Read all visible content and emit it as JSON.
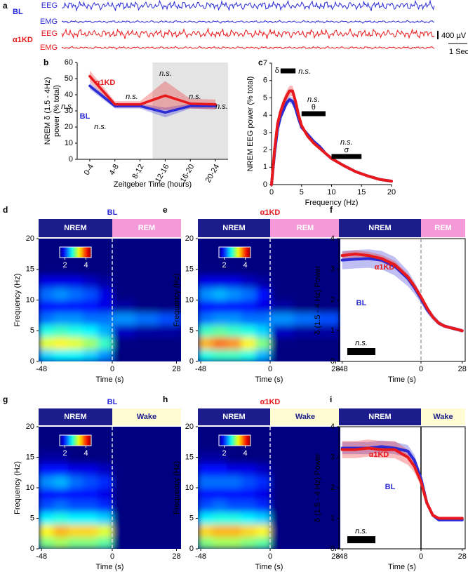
{
  "chart_data": [
    {
      "type": "traces",
      "panel": "a",
      "groups": [
        {
          "name": "BL",
          "color": "#2b2bd6",
          "channels": [
            "EEG",
            "EMG"
          ]
        },
        {
          "name": "α1KD",
          "color": "#e8191c",
          "channels": [
            "EEG",
            "EMG"
          ]
        }
      ],
      "scale_bar": {
        "amplitude": "400 µV",
        "time": "1 Sec"
      }
    },
    {
      "type": "line",
      "panel": "b",
      "categories": [
        "0-4",
        "4-8",
        "8-12",
        "12-16",
        "16-20",
        "20-24"
      ],
      "shaded": [
        false,
        false,
        false,
        true,
        true,
        true
      ],
      "series": [
        {
          "name": "BL",
          "color": "#2b2bd6",
          "values": [
            45.5,
            33,
            33,
            29,
            33,
            33
          ],
          "errors": [
            2,
            1.5,
            1.5,
            3,
            1.5,
            2
          ]
        },
        {
          "name": "α1KD",
          "color": "#e8191c",
          "values": [
            51.5,
            34,
            34,
            39.5,
            34.5,
            34
          ],
          "errors": [
            3.5,
            2,
            2,
            9,
            3,
            3
          ]
        }
      ],
      "ylim": [
        0,
        60
      ],
      "yticks": [
        0,
        10,
        20,
        30,
        40,
        50,
        60
      ],
      "ylabel": [
        "NREM δ (1.5 - 4Hz)",
        "power (% total)"
      ],
      "xlabel": "Zeitgeber Time (hours)",
      "annotations": [
        "n.s.",
        "n.s.",
        "n.s.",
        "n.s.",
        "n.s.",
        "n.s."
      ]
    },
    {
      "type": "line",
      "panel": "c",
      "x": [
        0,
        0.5,
        1,
        1.5,
        2,
        2.5,
        3,
        3.5,
        4,
        4.5,
        5,
        6,
        7,
        8,
        9,
        10,
        12,
        14,
        16,
        18,
        20
      ],
      "series": [
        {
          "name": "BL",
          "color": "#2b2bd6",
          "values": [
            0,
            1.8,
            3.2,
            3.9,
            4.3,
            4.7,
            4.9,
            4.8,
            4.4,
            3.8,
            3.3,
            2.9,
            2.5,
            2.2,
            1.8,
            1.5,
            1.1,
            0.75,
            0.5,
            0.3,
            0.2
          ],
          "errors": [
            0,
            0.15,
            0.2,
            0.2,
            0.2,
            0.2,
            0.2,
            0.2,
            0.2,
            0.15,
            0.1,
            0.1,
            0.1,
            0.08,
            0.08,
            0.06,
            0.05,
            0.05,
            0.04,
            0.03,
            0.03
          ]
        },
        {
          "name": "α1KD",
          "color": "#e8191c",
          "values": [
            0,
            2.0,
            3.5,
            4.2,
            4.7,
            5.1,
            5.4,
            5.4,
            4.8,
            4.0,
            3.4,
            2.8,
            2.4,
            2.1,
            1.8,
            1.5,
            1.1,
            0.75,
            0.5,
            0.3,
            0.2
          ],
          "errors": [
            0,
            0.2,
            0.3,
            0.3,
            0.3,
            0.3,
            0.3,
            0.3,
            0.3,
            0.2,
            0.15,
            0.1,
            0.1,
            0.08,
            0.08,
            0.06,
            0.05,
            0.05,
            0.04,
            0.03,
            0.03
          ]
        }
      ],
      "xlim": [
        0,
        20
      ],
      "xticks": [
        0,
        5,
        10,
        15,
        20
      ],
      "ylim": [
        0,
        7
      ],
      "yticks": [
        0,
        1,
        2,
        3,
        4,
        5,
        6,
        7
      ],
      "ylabel": "NREM EEG power (% total)",
      "xlabel": "Frequency (Hz)",
      "bands": [
        {
          "label": "δ",
          "range": [
            1.5,
            4
          ],
          "note": "n.s."
        },
        {
          "label": "θ",
          "range": [
            5,
            9
          ],
          "note": "n.s."
        },
        {
          "label": "σ",
          "range": [
            10,
            15
          ],
          "note": "n.s."
        }
      ]
    },
    {
      "type": "heatmap",
      "panel": "d",
      "title": "BL",
      "title_color": "#2b2bd6",
      "states": [
        {
          "name": "NREM",
          "color": "#1c1c8c",
          "text_color": "#ffffff"
        },
        {
          "name": "REM",
          "color": "#f59ad8",
          "text_color": "#ffffff"
        }
      ],
      "transition": 0,
      "time_edges": [
        -50,
        -40,
        -30,
        -20,
        -10,
        0,
        10,
        20,
        30
      ],
      "freq_edges": [
        0,
        2,
        4,
        6,
        8,
        10,
        12,
        14,
        16,
        18,
        20
      ],
      "z": [
        [
          2.5,
          2.6,
          2.6,
          2.5,
          2.3,
          1.4,
          1.4,
          1.4
        ],
        [
          3.3,
          3.4,
          3.3,
          3.1,
          2.8,
          1.5,
          1.5,
          1.5
        ],
        [
          2.7,
          2.8,
          2.7,
          2.6,
          2.4,
          1.7,
          1.6,
          1.6
        ],
        [
          2.2,
          2.3,
          2.3,
          2.2,
          2.2,
          2.3,
          2.2,
          2.1
        ],
        [
          1.9,
          1.9,
          1.9,
          1.9,
          1.8,
          1.6,
          1.5,
          1.5
        ],
        [
          2.2,
          2.3,
          2.2,
          2.1,
          1.8,
          1.4,
          1.4,
          1.4
        ],
        [
          1.8,
          1.8,
          1.8,
          1.7,
          1.6,
          1.3,
          1.3,
          1.3
        ],
        [
          1.5,
          1.5,
          1.5,
          1.5,
          1.4,
          1.2,
          1.2,
          1.2
        ],
        [
          1.3,
          1.3,
          1.3,
          1.3,
          1.3,
          1.2,
          1.2,
          1.2
        ],
        [
          1.2,
          1.2,
          1.2,
          1.2,
          1.2,
          1.2,
          1.2,
          1.2
        ]
      ],
      "zlim": [
        1.5,
        4.5
      ],
      "zticks": [
        2,
        4
      ],
      "xlim": [
        -50,
        30
      ],
      "xticks": [
        -48,
        0,
        28
      ],
      "ylim": [
        0,
        20
      ],
      "yticks": [
        0,
        5,
        10,
        15,
        20
      ],
      "xlabel": "Time (s)",
      "ylabel": "Frequency (Hz)"
    },
    {
      "type": "heatmap",
      "panel": "e",
      "title": "α1KD",
      "title_color": "#e8191c",
      "states": [
        {
          "name": "NREM",
          "color": "#1c1c8c",
          "text_color": "#ffffff"
        },
        {
          "name": "REM",
          "color": "#f59ad8",
          "text_color": "#ffffff"
        }
      ],
      "transition": 0,
      "time_edges": [
        -50,
        -40,
        -30,
        -20,
        -10,
        0,
        10,
        20,
        30
      ],
      "freq_edges": [
        0,
        2,
        4,
        6,
        8,
        10,
        12,
        14,
        16,
        18,
        20
      ],
      "z": [
        [
          2.7,
          2.8,
          2.8,
          2.7,
          2.4,
          1.4,
          1.4,
          1.4
        ],
        [
          3.6,
          3.8,
          3.7,
          3.4,
          3.0,
          1.5,
          1.5,
          1.5
        ],
        [
          2.8,
          2.9,
          2.8,
          2.7,
          2.5,
          1.7,
          1.6,
          1.6
        ],
        [
          2.2,
          2.3,
          2.3,
          2.2,
          2.2,
          2.3,
          2.2,
          2.1
        ],
        [
          1.9,
          1.9,
          1.9,
          1.9,
          1.8,
          1.6,
          1.5,
          1.5
        ],
        [
          2.3,
          2.4,
          2.3,
          2.2,
          1.9,
          1.4,
          1.4,
          1.4
        ],
        [
          1.8,
          1.8,
          1.8,
          1.7,
          1.6,
          1.3,
          1.3,
          1.3
        ],
        [
          1.5,
          1.5,
          1.5,
          1.5,
          1.4,
          1.2,
          1.2,
          1.2
        ],
        [
          1.3,
          1.3,
          1.3,
          1.3,
          1.3,
          1.2,
          1.2,
          1.2
        ],
        [
          1.2,
          1.2,
          1.2,
          1.2,
          1.2,
          1.2,
          1.2,
          1.2
        ]
      ],
      "zlim": [
        1.5,
        4.5
      ],
      "zticks": [
        2,
        4
      ],
      "xlim": [
        -50,
        30
      ],
      "xticks": [
        -48,
        0,
        28
      ],
      "ylim": [
        0,
        20
      ],
      "yticks": [
        0,
        5,
        10,
        15,
        20
      ],
      "xlabel": "Time (s)",
      "ylabel": "Frequency (Hz)"
    },
    {
      "type": "line",
      "panel": "f",
      "states": [
        {
          "name": "NREM",
          "color": "#1c1c8c",
          "text_color": "#ffffff"
        },
        {
          "name": "REM",
          "color": "#f59ad8",
          "text_color": "#ffffff"
        }
      ],
      "transition": 0,
      "transition_style": "dashed",
      "x": [
        -48,
        -40,
        -32,
        -24,
        -16,
        -8,
        -4,
        0,
        4,
        8,
        12,
        16,
        20,
        24,
        28
      ],
      "series": [
        {
          "name": "BL",
          "color": "#2b2bd6",
          "values": [
            3.3,
            3.33,
            3.35,
            3.3,
            3.1,
            2.7,
            2.4,
            2.05,
            1.7,
            1.45,
            1.25,
            1.15,
            1.1,
            1.05,
            1.0
          ],
          "errors": [
            0.3,
            0.3,
            0.3,
            0.3,
            0.3,
            0.25,
            0.2,
            0.15,
            0.12,
            0.1,
            0.08,
            0.06,
            0.06,
            0.06,
            0.06
          ]
        },
        {
          "name": "α1KD",
          "color": "#e8191c",
          "values": [
            3.45,
            3.5,
            3.45,
            3.35,
            3.15,
            2.75,
            2.45,
            2.1,
            1.75,
            1.45,
            1.25,
            1.15,
            1.1,
            1.05,
            1.0
          ],
          "errors": [
            0.12,
            0.12,
            0.12,
            0.12,
            0.12,
            0.1,
            0.1,
            0.08,
            0.08,
            0.06,
            0.05,
            0.05,
            0.05,
            0.05,
            0.05
          ]
        }
      ],
      "xlim": [
        -50,
        30
      ],
      "xticks": [
        -48,
        0,
        28
      ],
      "ylim": [
        0,
        4
      ],
      "yticks": [
        0,
        1,
        2,
        3,
        4
      ],
      "ylabel": "δ (1.5 - 4 Hz) Power",
      "xlabel": "Time (s)",
      "annotations": [
        "n.s."
      ]
    },
    {
      "type": "heatmap",
      "panel": "g",
      "title": "BL",
      "title_color": "#2b2bd6",
      "states": [
        {
          "name": "NREM",
          "color": "#1c1c8c",
          "text_color": "#ffffff"
        },
        {
          "name": "Wake",
          "color": "#fffbd2",
          "text_color": "#1c1c8c"
        }
      ],
      "transition": 0,
      "time_edges": [
        -50,
        -40,
        -30,
        -20,
        -10,
        0,
        10,
        20,
        30
      ],
      "freq_edges": [
        0,
        2,
        4,
        6,
        8,
        10,
        12,
        14,
        16,
        18,
        20
      ],
      "z": [
        [
          3.0,
          3.1,
          3.0,
          3.0,
          2.9,
          1.2,
          1.2,
          1.2
        ],
        [
          3.4,
          3.6,
          3.5,
          3.5,
          3.3,
          1.2,
          1.2,
          1.2
        ],
        [
          2.6,
          2.7,
          2.6,
          2.6,
          2.5,
          1.2,
          1.2,
          1.2
        ],
        [
          2.1,
          2.2,
          2.1,
          2.1,
          2.0,
          1.2,
          1.2,
          1.2
        ],
        [
          1.9,
          1.9,
          1.9,
          1.9,
          1.8,
          1.2,
          1.2,
          1.2
        ],
        [
          2.3,
          2.4,
          2.2,
          2.1,
          2.0,
          1.2,
          1.2,
          1.2
        ],
        [
          1.9,
          1.9,
          1.8,
          1.8,
          1.7,
          1.2,
          1.2,
          1.2
        ],
        [
          1.6,
          1.6,
          1.5,
          1.5,
          1.4,
          1.2,
          1.2,
          1.2
        ],
        [
          1.3,
          1.3,
          1.3,
          1.3,
          1.3,
          1.2,
          1.2,
          1.2
        ],
        [
          1.2,
          1.2,
          1.2,
          1.2,
          1.2,
          1.2,
          1.2,
          1.2
        ]
      ],
      "zlim": [
        1.5,
        4.5
      ],
      "zticks": [
        2,
        4
      ],
      "xlim": [
        -50,
        30
      ],
      "xticks": [
        -48,
        0,
        28
      ],
      "ylim": [
        0,
        20
      ],
      "yticks": [
        0,
        5,
        10,
        15,
        20
      ],
      "xlabel": "Time (s)",
      "ylabel": "Frequency (Hz)"
    },
    {
      "type": "heatmap",
      "panel": "h",
      "title": "α1KD",
      "title_color": "#e8191c",
      "states": [
        {
          "name": "NREM",
          "color": "#1c1c8c",
          "text_color": "#ffffff"
        },
        {
          "name": "Wake",
          "color": "#fffbd2",
          "text_color": "#1c1c8c"
        }
      ],
      "transition": 0,
      "time_edges": [
        -50,
        -40,
        -30,
        -20,
        -10,
        0,
        10,
        20,
        30
      ],
      "freq_edges": [
        0,
        2,
        4,
        6,
        8,
        10,
        12,
        14,
        16,
        18,
        20
      ],
      "z": [
        [
          3.0,
          3.1,
          3.1,
          3.0,
          2.9,
          1.2,
          1.2,
          1.2
        ],
        [
          3.5,
          3.6,
          3.6,
          3.5,
          3.4,
          1.2,
          1.2,
          1.2
        ],
        [
          2.6,
          2.7,
          2.7,
          2.6,
          2.5,
          1.2,
          1.2,
          1.2
        ],
        [
          2.1,
          2.2,
          2.1,
          2.1,
          2.0,
          1.2,
          1.2,
          1.2
        ],
        [
          1.9,
          1.9,
          1.9,
          1.9,
          1.8,
          1.2,
          1.2,
          1.2
        ],
        [
          2.2,
          2.2,
          2.2,
          2.1,
          2.0,
          1.2,
          1.2,
          1.2
        ],
        [
          1.9,
          1.9,
          1.8,
          1.8,
          1.7,
          1.2,
          1.2,
          1.2
        ],
        [
          1.6,
          1.6,
          1.5,
          1.5,
          1.4,
          1.2,
          1.2,
          1.2
        ],
        [
          1.3,
          1.3,
          1.3,
          1.3,
          1.3,
          1.2,
          1.2,
          1.2
        ],
        [
          1.2,
          1.2,
          1.2,
          1.2,
          1.2,
          1.2,
          1.2,
          1.2
        ]
      ],
      "zlim": [
        1.5,
        4.5
      ],
      "zticks": [
        2,
        4
      ],
      "xlim": [
        -50,
        30
      ],
      "xticks": [
        -48,
        0,
        28
      ],
      "ylim": [
        0,
        20
      ],
      "yticks": [
        0,
        5,
        10,
        15,
        20
      ],
      "xlabel": "Time (s)",
      "ylabel": "Frequency (Hz)"
    },
    {
      "type": "line",
      "panel": "i",
      "states": [
        {
          "name": "NREM",
          "color": "#1c1c8c",
          "text_color": "#ffffff"
        },
        {
          "name": "Wake",
          "color": "#fffbd2",
          "text_color": "#1c1c8c"
        }
      ],
      "transition": 0,
      "transition_style": "solid",
      "x": [
        -48,
        -40,
        -32,
        -24,
        -16,
        -8,
        -4,
        0,
        4,
        8,
        12,
        16,
        20,
        24,
        28
      ],
      "series": [
        {
          "name": "BL",
          "color": "#2b2bd6",
          "values": [
            3.3,
            3.3,
            3.3,
            3.35,
            3.3,
            3.2,
            2.9,
            2.3,
            1.5,
            1.1,
            0.95,
            0.95,
            0.95,
            0.95,
            0.95
          ],
          "errors": [
            0.2,
            0.2,
            0.2,
            0.2,
            0.2,
            0.2,
            0.18,
            0.15,
            0.1,
            0.06,
            0.05,
            0.05,
            0.05,
            0.05,
            0.05
          ]
        },
        {
          "name": "α1KD",
          "color": "#e8191c",
          "values": [
            3.25,
            3.25,
            3.3,
            3.25,
            3.25,
            3.0,
            2.7,
            2.2,
            1.5,
            1.1,
            1.0,
            1.0,
            1.0,
            1.0,
            1.0
          ],
          "errors": [
            0.28,
            0.28,
            0.28,
            0.28,
            0.28,
            0.25,
            0.2,
            0.15,
            0.1,
            0.06,
            0.05,
            0.05,
            0.05,
            0.05,
            0.05
          ]
        }
      ],
      "xlim": [
        -50,
        30
      ],
      "xticks": [
        -48,
        0,
        28
      ],
      "ylim": [
        0,
        4
      ],
      "yticks": [
        0,
        1,
        2,
        3,
        4
      ],
      "ylabel": "δ (1.5 - 4 Hz) Power",
      "xlabel": "Time (s)",
      "annotations": [
        "n.s."
      ]
    }
  ]
}
